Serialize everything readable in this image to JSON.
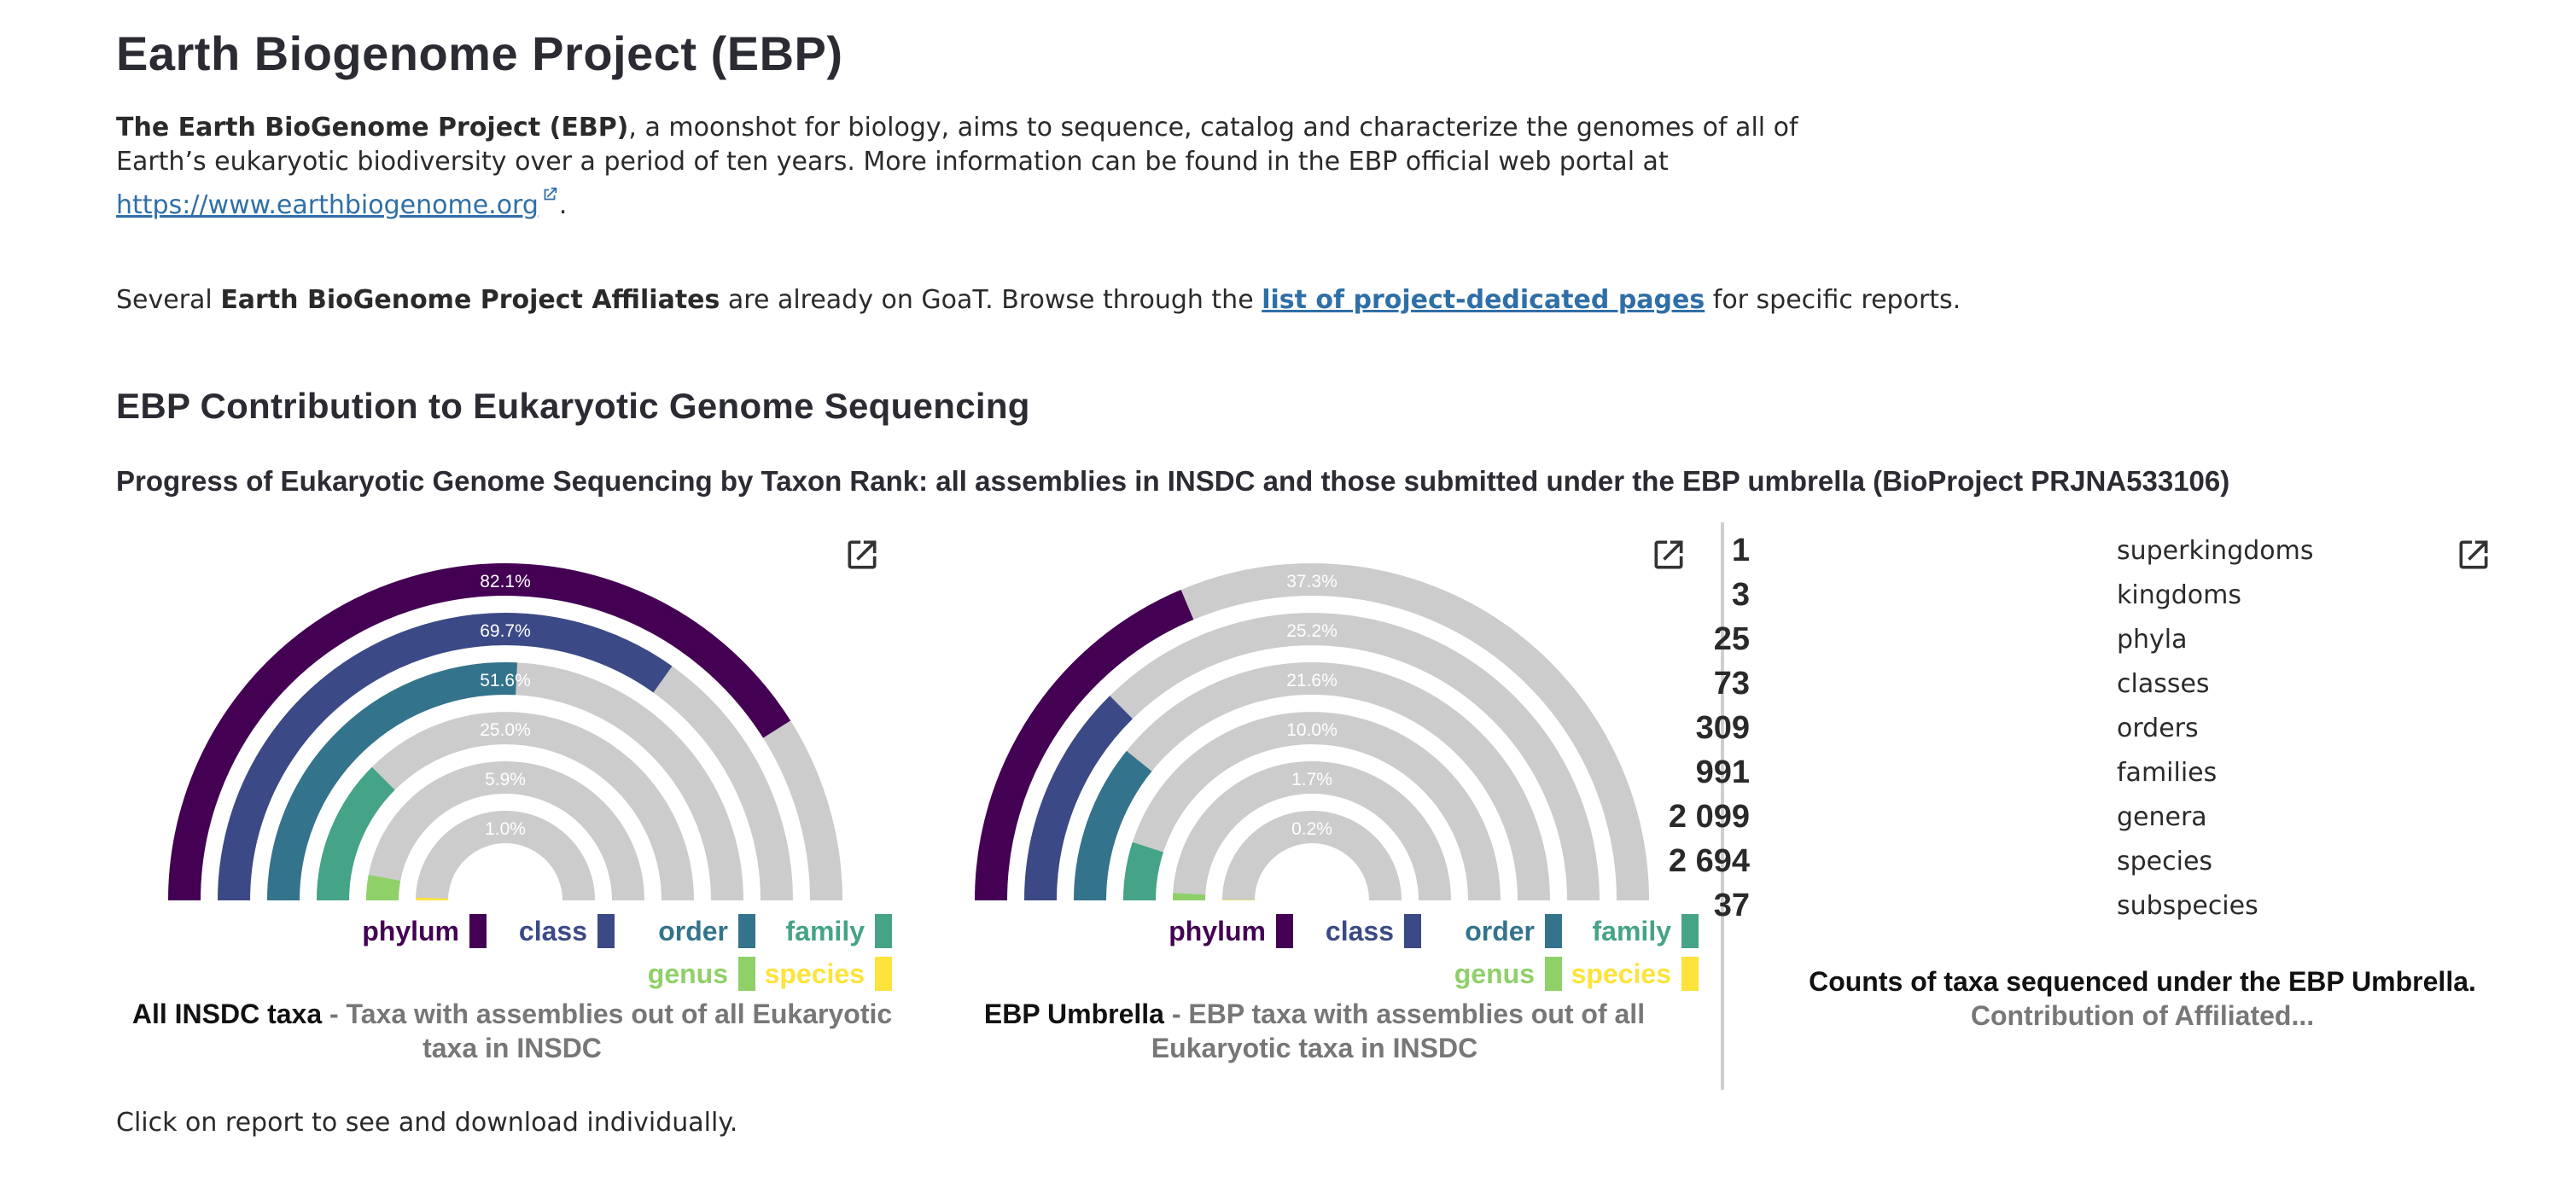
{
  "page": {
    "title": "Earth Biogenome Project (EBP)",
    "intro": {
      "bold_lead": "The Earth BioGenome Project (EBP)",
      "text": ", a moonshot for biology, aims to sequence, catalog and characterize the genomes of all of Earth’s eukaryotic biodiversity over a period of ten years. More information can be found in the EBP official web portal at ",
      "link": "https://www.earthbiogenome.org",
      "end": "."
    },
    "affiliates": {
      "pre": "Several ",
      "bold": "Earth BioGenome Project Affiliates",
      "mid": " are already on GoaT. Browse through the ",
      "link": "list of project-dedicated pages",
      "post": " for specific reports."
    },
    "section_title": "EBP Contribution to Eukaryotic Genome Sequencing",
    "subtitle": "Progress of Eukaryotic Genome Sequencing by Taxon Rank: all assemblies in INSDC and those submitted under the EBP umbrella (BioProject PRJNA533106)",
    "footer": "Click on report to see and download individually."
  },
  "colors": {
    "phylum": "#440154",
    "class": "#3b4a86",
    "order": "#33748c",
    "family": "#45a387",
    "genus": "#8fd069",
    "species": "#fde33b",
    "background_arc": "#cccccc"
  },
  "icons": {
    "open_report": "open-in-new-icon",
    "external_link": "external-link-icon"
  },
  "chart_data": [
    {
      "type": "radial-bar",
      "series": [
        {
          "name": "phylum",
          "value": 82.1,
          "label": "82.1%"
        },
        {
          "name": "class",
          "value": 69.7,
          "label": "69.7%"
        },
        {
          "name": "order",
          "value": 51.6,
          "label": "51.6%"
        },
        {
          "name": "family",
          "value": 25.0,
          "label": "25.0%"
        },
        {
          "name": "genus",
          "value": 5.9,
          "label": "5.9%"
        },
        {
          "name": "species",
          "value": 1.0,
          "label": "1.0%"
        }
      ],
      "caption_bold": "All INSDC taxa",
      "caption_rest": " - Taxa with assemblies out of all Eukaryotic taxa in INSDC"
    },
    {
      "type": "radial-bar",
      "series": [
        {
          "name": "phylum",
          "value": 37.3,
          "label": "37.3%"
        },
        {
          "name": "class",
          "value": 25.2,
          "label": "25.2%"
        },
        {
          "name": "order",
          "value": 21.6,
          "label": "21.6%"
        },
        {
          "name": "family",
          "value": 10.0,
          "label": "10.0%"
        },
        {
          "name": "genus",
          "value": 1.7,
          "label": "1.7%"
        },
        {
          "name": "species",
          "value": 0.2,
          "label": "0.2%"
        }
      ],
      "caption_bold": "EBP Umbrella",
      "caption_rest": " - EBP taxa with assemblies out of all Eukaryotic taxa in INSDC"
    }
  ],
  "legend": [
    "phylum",
    "class",
    "order",
    "family",
    "genus",
    "species"
  ],
  "counts": {
    "rows": [
      {
        "num": "1",
        "label": "superkingdoms"
      },
      {
        "num": "3",
        "label": "kingdoms"
      },
      {
        "num": "25",
        "label": "phyla"
      },
      {
        "num": "73",
        "label": "classes"
      },
      {
        "num": "309",
        "label": "orders"
      },
      {
        "num": "991",
        "label": "families"
      },
      {
        "num": "2 099",
        "label": "genera"
      },
      {
        "num": "2 694",
        "label": "species"
      },
      {
        "num": "37",
        "label": "subspecies"
      }
    ],
    "caption_bold": "Counts of taxa sequenced under the EBP Umbrella.",
    "caption_sub": "Contribution of Affiliated..."
  }
}
